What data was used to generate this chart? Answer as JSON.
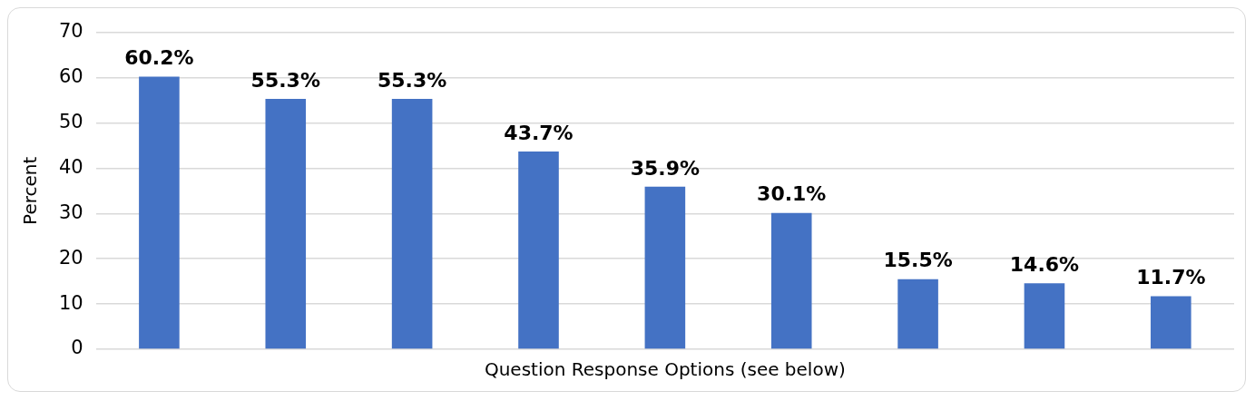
{
  "chart_data": {
    "type": "bar",
    "xlabel": "Question Response Options (see below)",
    "ylabel": "Percent",
    "categories": [
      null,
      null,
      null,
      null,
      null,
      null,
      null,
      null,
      null
    ],
    "values": [
      60.2,
      55.3,
      55.3,
      43.7,
      35.9,
      30.1,
      15.5,
      14.6,
      11.7
    ],
    "value_labels": [
      "60.2%",
      "55.3%",
      "55.3%",
      "43.7%",
      "35.9%",
      "30.1%",
      "15.5%",
      "14.6%",
      "11.7%"
    ],
    "color": "#4472c4",
    "ylim": [
      0,
      70
    ],
    "yticks": [
      0,
      10,
      20,
      30,
      40,
      50,
      60,
      70
    ],
    "grid": "y"
  }
}
